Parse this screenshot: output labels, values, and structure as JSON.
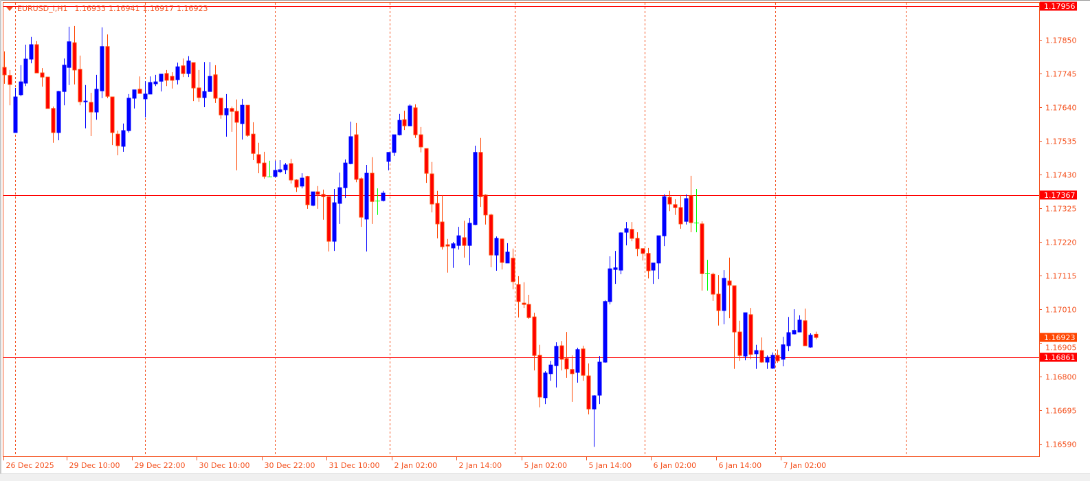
{
  "header": {
    "symbol": "EURUSD_i,H1",
    "open": "1.16933",
    "high": "1.16941",
    "low": "1.16917",
    "close": "1.16923"
  },
  "colors": {
    "bull": "#0000ff",
    "bear_body": "#ff0000",
    "bear_outline": "#ff4500",
    "doji": "#00ff00",
    "axis": "#f4511e",
    "level_line": "#ff0000",
    "current_price_bg": "#ff4500"
  },
  "chart_data": {
    "type": "candlestick",
    "timeframe": "H1",
    "ylim": [
      1.16565,
      1.17975
    ],
    "grid": "vertical dashed",
    "y_ticks": [
      1.1785,
      1.17745,
      1.1764,
      1.17535,
      1.1743,
      1.17325,
      1.1722,
      1.17115,
      1.1701,
      1.16905,
      1.168,
      1.16695,
      1.1659
    ],
    "x_tick_labels": [
      "26 Dec 2025",
      "29 Dec 10:00",
      "29 Dec 22:00",
      "30 Dec 10:00",
      "30 Dec 22:00",
      "31 Dec 10:00",
      "2 Jan 02:00",
      "2 Jan 14:00",
      "5 Jan 02:00",
      "5 Jan 14:00",
      "6 Jan 02:00",
      "6 Jan 14:00",
      "7 Jan 02:00"
    ],
    "levels": [
      1.17956,
      1.17367,
      1.16861
    ],
    "current_price": 1.16923,
    "candles_ohlc": [
      [
        1.17765,
        1.17815,
        1.17714,
        1.17742
      ],
      [
        1.1774,
        1.17757,
        1.17647,
        1.17712
      ],
      [
        1.17562,
        1.17701,
        1.17562,
        1.17673
      ],
      [
        1.1768,
        1.17772,
        1.17675,
        1.1772
      ],
      [
        1.17716,
        1.17836,
        1.17707,
        1.17791
      ],
      [
        1.17791,
        1.1786,
        1.17778,
        1.17836
      ],
      [
        1.17836,
        1.17847,
        1.17748,
        1.17748
      ],
      [
        1.17748,
        1.17763,
        1.17705,
        1.17735
      ],
      [
        1.17735,
        1.17735,
        1.17637,
        1.17637
      ],
      [
        1.17637,
        1.17643,
        1.1753,
        1.17562
      ],
      [
        1.17562,
        1.17692,
        1.17538,
        1.1769
      ],
      [
        1.1769,
        1.17793,
        1.17647,
        1.17772
      ],
      [
        1.17765,
        1.17892,
        1.1771,
        1.17845
      ],
      [
        1.17842,
        1.17894,
        1.17712,
        1.17757
      ],
      [
        1.17759,
        1.17802,
        1.17647,
        1.17658
      ],
      [
        1.17658,
        1.1771,
        1.17575,
        1.1766
      ],
      [
        1.17656,
        1.17686,
        1.17551,
        1.17626
      ],
      [
        1.17626,
        1.17742,
        1.17602,
        1.17697
      ],
      [
        1.17692,
        1.1789,
        1.17669,
        1.1783
      ],
      [
        1.1783,
        1.17868,
        1.17669,
        1.17675
      ],
      [
        1.17673,
        1.17673,
        1.17523,
        1.17562
      ],
      [
        1.17557,
        1.17568,
        1.17491,
        1.17521
      ],
      [
        1.17519,
        1.1759,
        1.17502,
        1.17568
      ],
      [
        1.17568,
        1.17682,
        1.17562,
        1.17669
      ],
      [
        1.17669,
        1.17695,
        1.17637,
        1.17695
      ],
      [
        1.17697,
        1.17737,
        1.17684,
        1.17684
      ],
      [
        1.17667,
        1.17722,
        1.17609,
        1.17682
      ],
      [
        1.17682,
        1.17737,
        1.17682,
        1.17718
      ],
      [
        1.17714,
        1.17742,
        1.17707,
        1.1772
      ],
      [
        1.17722,
        1.17744,
        1.1769,
        1.17744
      ],
      [
        1.17746,
        1.17757,
        1.17707,
        1.17725
      ],
      [
        1.17737,
        1.1775,
        1.17699,
        1.17725
      ],
      [
        1.17727,
        1.1778,
        1.17712,
        1.17767
      ],
      [
        1.1777,
        1.17793,
        1.17735,
        1.17746
      ],
      [
        1.17746,
        1.178,
        1.17735,
        1.17785
      ],
      [
        1.1778,
        1.1778,
        1.1766,
        1.17701
      ],
      [
        1.17701,
        1.17757,
        1.17658,
        1.17671
      ],
      [
        1.17671,
        1.17782,
        1.17641,
        1.1769
      ],
      [
        1.1769,
        1.17782,
        1.1769,
        1.17737
      ],
      [
        1.17742,
        1.17772,
        1.17654,
        1.17669
      ],
      [
        1.17669,
        1.17669,
        1.17605,
        1.17617
      ],
      [
        1.17617,
        1.17682,
        1.17549,
        1.17637
      ],
      [
        1.17637,
        1.17643,
        1.17564,
        1.17628
      ],
      [
        1.17628,
        1.17665,
        1.17444,
        1.17594
      ],
      [
        1.1759,
        1.17667,
        1.1754,
        1.17647
      ],
      [
        1.17647,
        1.17647,
        1.17549,
        1.17553
      ],
      [
        1.17557,
        1.17594,
        1.17476,
        1.17497
      ],
      [
        1.17493,
        1.1753,
        1.17435,
        1.17467
      ],
      [
        1.17467,
        1.17502,
        1.17418,
        1.17425
      ],
      [
        1.17425,
        1.17474,
        1.17425,
        1.17425
      ],
      [
        1.17425,
        1.17474,
        1.17422,
        1.17444
      ],
      [
        1.1744,
        1.17476,
        1.17435,
        1.17446
      ],
      [
        1.17446,
        1.17467,
        1.17433,
        1.17461
      ],
      [
        1.17465,
        1.1748,
        1.17403,
        1.17414
      ],
      [
        1.17414,
        1.17416,
        1.17377,
        1.17392
      ],
      [
        1.17395,
        1.17435,
        1.17388,
        1.1742
      ],
      [
        1.17425,
        1.17427,
        1.17324,
        1.17337
      ],
      [
        1.17335,
        1.17377,
        1.17332,
        1.17377
      ],
      [
        1.17377,
        1.17395,
        1.17324,
        1.17369
      ],
      [
        1.17369,
        1.17384,
        1.1729,
        1.17362
      ],
      [
        1.17362,
        1.17362,
        1.17191,
        1.17223
      ],
      [
        1.17223,
        1.17386,
        1.17193,
        1.17343
      ],
      [
        1.17341,
        1.17437,
        1.17277,
        1.1739
      ],
      [
        1.1739,
        1.17478,
        1.17358,
        1.17467
      ],
      [
        1.17465,
        1.17596,
        1.17463,
        1.17549
      ],
      [
        1.17555,
        1.17592,
        1.17407,
        1.17416
      ],
      [
        1.17418,
        1.17422,
        1.17268,
        1.17298
      ],
      [
        1.17292,
        1.17461,
        1.17191,
        1.17435
      ],
      [
        1.17435,
        1.17485,
        1.17277,
        1.17347
      ],
      [
        1.1735,
        1.17388,
        1.17305,
        1.1735
      ],
      [
        1.1735,
        1.1738,
        1.17347,
        1.17373
      ],
      [
        1.17472,
        1.175,
        1.17444,
        1.175
      ],
      [
        1.175,
        1.17555,
        1.17489,
        1.17555
      ],
      [
        1.17555,
        1.1762,
        1.17553,
        1.176
      ],
      [
        1.17602,
        1.1763,
        1.1757,
        1.17583
      ],
      [
        1.17583,
        1.1765,
        1.17583,
        1.17645
      ],
      [
        1.17639,
        1.1765,
        1.17545,
        1.17555
      ],
      [
        1.17555,
        1.17579,
        1.175,
        1.17517
      ],
      [
        1.17512,
        1.17512,
        1.17405,
        1.17435
      ],
      [
        1.17433,
        1.1747,
        1.17313,
        1.17339
      ],
      [
        1.17341,
        1.1738,
        1.17232,
        1.17277
      ],
      [
        1.17283,
        1.17367,
        1.17197,
        1.17206
      ],
      [
        1.17212,
        1.1723,
        1.17125,
        1.17208
      ],
      [
        1.17202,
        1.17221,
        1.1714,
        1.17215
      ],
      [
        1.1721,
        1.17268,
        1.17197,
        1.1724
      ],
      [
        1.17234,
        1.17287,
        1.17172,
        1.1721
      ],
      [
        1.1721,
        1.17296,
        1.17148,
        1.17279
      ],
      [
        1.17275,
        1.17521,
        1.17273,
        1.175
      ],
      [
        1.175,
        1.17545,
        1.1733,
        1.17362
      ],
      [
        1.17367,
        1.17369,
        1.17275,
        1.17305
      ],
      [
        1.17305,
        1.17309,
        1.17142,
        1.1718
      ],
      [
        1.1718,
        1.17238,
        1.17131,
        1.17232
      ],
      [
        1.1723,
        1.17232,
        1.17135,
        1.17157
      ],
      [
        1.17155,
        1.17217,
        1.17155,
        1.17189
      ],
      [
        1.1717,
        1.172,
        1.17073,
        1.17097
      ],
      [
        1.17088,
        1.17114,
        1.16985,
        1.17035
      ],
      [
        1.1703,
        1.17095,
        1.17015,
        1.17026
      ],
      [
        1.17026,
        1.17056,
        1.16981,
        1.16985
      ],
      [
        1.16987,
        1.17,
        1.1682,
        1.16867
      ],
      [
        1.16867,
        1.169,
        1.16705,
        1.16737
      ],
      [
        1.16735,
        1.16818,
        1.16715,
        1.16812
      ],
      [
        1.1681,
        1.1685,
        1.16788,
        1.16837
      ],
      [
        1.16835,
        1.16908,
        1.16767,
        1.16895
      ],
      [
        1.16897,
        1.16912,
        1.1682,
        1.16855
      ],
      [
        1.16857,
        1.1694,
        1.16797,
        1.16825
      ],
      [
        1.16823,
        1.16867,
        1.16722,
        1.1681
      ],
      [
        1.16814,
        1.16891,
        1.16782,
        1.16885
      ],
      [
        1.16887,
        1.16897,
        1.16788,
        1.16805
      ],
      [
        1.16803,
        1.16842,
        1.16683,
        1.167
      ],
      [
        1.167,
        1.16743,
        1.16582,
        1.16741
      ],
      [
        1.16743,
        1.16865,
        1.16715,
        1.16846
      ],
      [
        1.16846,
        1.17039,
        1.16844,
        1.17035
      ],
      [
        1.17035,
        1.17176,
        1.17026,
        1.17137
      ],
      [
        1.17135,
        1.17193,
        1.1709,
        1.1714
      ],
      [
        1.17133,
        1.17251,
        1.1712,
        1.17249
      ],
      [
        1.17251,
        1.17283,
        1.1721,
        1.17262
      ],
      [
        1.1726,
        1.17283,
        1.17223,
        1.17232
      ],
      [
        1.17232,
        1.17251,
        1.17176,
        1.172
      ],
      [
        1.172,
        1.172,
        1.17163,
        1.17185
      ],
      [
        1.17185,
        1.17202,
        1.17107,
        1.17131
      ],
      [
        1.17133,
        1.17155,
        1.1709,
        1.17155
      ],
      [
        1.17155,
        1.1724,
        1.17105,
        1.1724
      ],
      [
        1.1724,
        1.17369,
        1.17208,
        1.17362
      ],
      [
        1.1736,
        1.1738,
        1.17317,
        1.17339
      ],
      [
        1.17337,
        1.17354,
        1.17305,
        1.17328
      ],
      [
        1.17328,
        1.17367,
        1.17262,
        1.17277
      ],
      [
        1.17285,
        1.17369,
        1.17275,
        1.17356
      ],
      [
        1.17365,
        1.17427,
        1.17251,
        1.17281
      ],
      [
        1.17281,
        1.17386,
        1.17251,
        1.17281
      ],
      [
        1.17277,
        1.17285,
        1.17069,
        1.17122
      ],
      [
        1.17122,
        1.17165,
        1.17069,
        1.17122
      ],
      [
        1.1712,
        1.17125,
        1.17037,
        1.17058
      ],
      [
        1.17058,
        1.17118,
        1.1696,
        1.17007
      ],
      [
        1.17007,
        1.17133,
        1.16964,
        1.17107
      ],
      [
        1.17099,
        1.17172,
        1.16983,
        1.17086
      ],
      [
        1.17084,
        1.17084,
        1.16825,
        1.1694
      ],
      [
        1.1694,
        1.16975,
        1.1685,
        1.16867
      ],
      [
        1.16865,
        1.17,
        1.16852,
        1.17
      ],
      [
        1.16994,
        1.17015,
        1.16855,
        1.1687
      ],
      [
        1.16872,
        1.169,
        1.16825,
        1.16882
      ],
      [
        1.16882,
        1.16923,
        1.16844,
        1.16846
      ],
      [
        1.16846,
        1.16867,
        1.16825,
        1.16861
      ],
      [
        1.16827,
        1.16876,
        1.16825,
        1.16867
      ],
      [
        1.16867,
        1.16885,
        1.16844,
        1.1685
      ],
      [
        1.16855,
        1.16925,
        1.16833,
        1.169
      ],
      [
        1.16897,
        1.16987,
        1.1688,
        1.16938
      ],
      [
        1.16934,
        1.17011,
        1.16932,
        1.16945
      ],
      [
        1.1694,
        1.16992,
        1.1694,
        1.16977
      ],
      [
        1.16975,
        1.17013,
        1.16897,
        1.16897
      ],
      [
        1.16893,
        1.16936,
        1.16891,
        1.1693
      ],
      [
        1.16933,
        1.16941,
        1.16917,
        1.16923
      ]
    ]
  }
}
